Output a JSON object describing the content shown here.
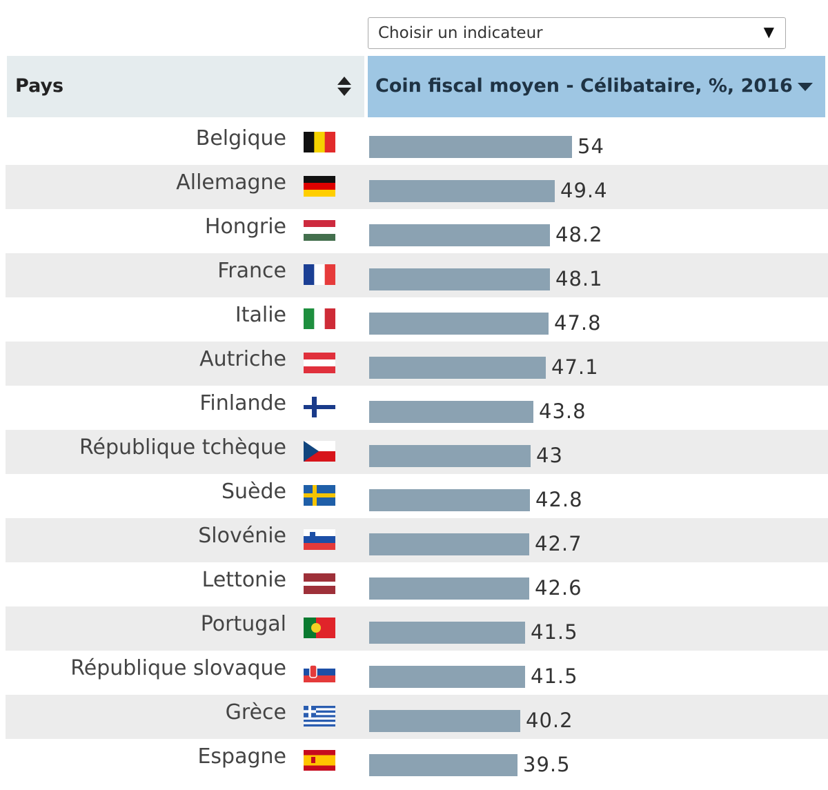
{
  "selector": {
    "label": "Choisir un indicateur",
    "arrow": "▼"
  },
  "header": {
    "country_label": "Pays",
    "indicator_label": "Coin fiscal moyen - Célibataire, %, 2016"
  },
  "chart_data": {
    "type": "bar",
    "orientation": "horizontal",
    "title": "",
    "xlabel": "Coin fiscal moyen - Célibataire, %, 2016",
    "ylabel": "Pays",
    "xlim": [
      0,
      100
    ],
    "bar_color": "#8ba2b2",
    "categories": [
      "Belgique",
      "Allemagne",
      "Hongrie",
      "France",
      "Italie",
      "Autriche",
      "Finlande",
      "République tchèque",
      "Suède",
      "Slovénie",
      "Lettonie",
      "Portugal",
      "République slovaque",
      "Grèce",
      "Espagne"
    ],
    "values": [
      54,
      49.4,
      48.2,
      48.1,
      47.8,
      47.1,
      43.8,
      43,
      42.8,
      42.7,
      42.6,
      41.5,
      41.5,
      40.2,
      39.5
    ],
    "value_labels": [
      "54",
      "49.4",
      "48.2",
      "48.1",
      "47.8",
      "47.1",
      "43.8",
      "43",
      "42.8",
      "42.7",
      "42.6",
      "41.5",
      "41.5",
      "40.2",
      "39.5"
    ],
    "flags": [
      "flag-belgium-icon",
      "flag-germany-icon",
      "flag-hungary-icon",
      "flag-france-icon",
      "flag-italy-icon",
      "flag-austria-icon",
      "flag-finland-icon",
      "flag-czech-republic-icon",
      "flag-sweden-icon",
      "flag-slovenia-icon",
      "flag-latvia-icon",
      "flag-portugal-icon",
      "flag-slovakia-icon",
      "flag-greece-icon",
      "flag-spain-icon"
    ]
  }
}
